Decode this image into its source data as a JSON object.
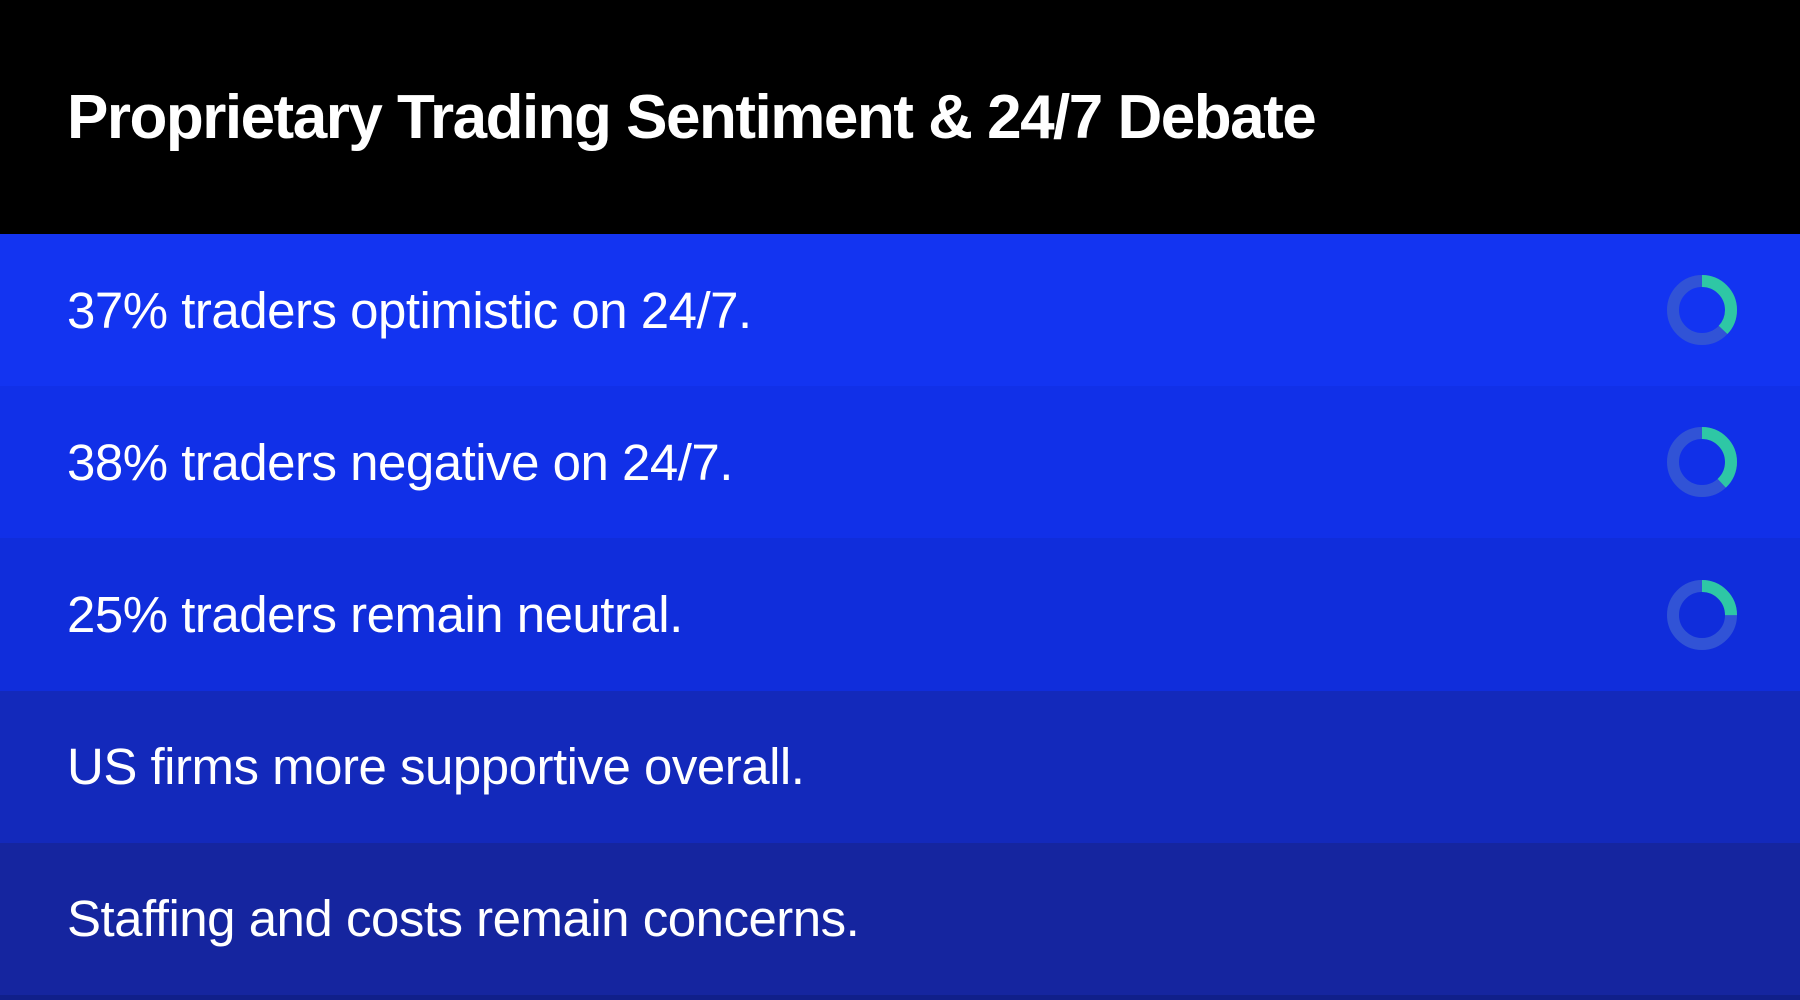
{
  "header": {
    "title": "Proprietary Trading Sentiment & 24/7 Debate",
    "bg_color": "#000000",
    "text_color": "#ffffff"
  },
  "rows": [
    {
      "text": "37% traders optimistic on 24/7.",
      "bg_color": "#1334f1",
      "donut_percent": 37
    },
    {
      "text": "38% traders negative on 24/7.",
      "bg_color": "#1130e8",
      "donut_percent": 38
    },
    {
      "text": "25% traders remain neutral.",
      "bg_color": "#102ddb",
      "donut_percent": 25
    },
    {
      "text": "US firms more supportive overall.",
      "bg_color": "#1329bb",
      "donut_percent": null
    },
    {
      "text": "Staffing and costs remain concerns.",
      "bg_color": "#15259f",
      "donut_percent": null
    }
  ],
  "donut_style": {
    "progress_color": "#2ec7a5",
    "track_color": "#3153d6"
  },
  "bottom_strip_color": "#101f8a",
  "chart_data": [
    {
      "type": "pie",
      "style": "donut-gauge",
      "title": "37% traders optimistic on 24/7.",
      "labels": [
        "optimistic",
        "remainder"
      ],
      "values": [
        37,
        63
      ],
      "colors": [
        "#2ec7a5",
        "#3153d6"
      ],
      "start_angle_deg": 0,
      "direction": "clockwise"
    },
    {
      "type": "pie",
      "style": "donut-gauge",
      "title": "38% traders negative on 24/7.",
      "labels": [
        "negative",
        "remainder"
      ],
      "values": [
        38,
        62
      ],
      "colors": [
        "#2ec7a5",
        "#3153d6"
      ],
      "start_angle_deg": 0,
      "direction": "clockwise"
    },
    {
      "type": "pie",
      "style": "donut-gauge",
      "title": "25% traders remain neutral.",
      "labels": [
        "neutral",
        "remainder"
      ],
      "values": [
        25,
        75
      ],
      "colors": [
        "#2ec7a5",
        "#3153d6"
      ],
      "start_angle_deg": 0,
      "direction": "clockwise"
    }
  ]
}
